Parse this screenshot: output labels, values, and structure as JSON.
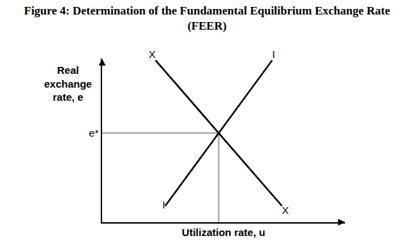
{
  "chart_data": {
    "type": "line",
    "title": "Figure 4: Determination of the Fundamental Equilibrium Exchange Rate (FEER)",
    "x_label": "Utilization rate, u",
    "y_label": "Real exchange rate, e",
    "xlim": [
      0,
      10
    ],
    "ylim": [
      0,
      10
    ],
    "xticks": [],
    "yticks": [
      {
        "value": 5.45,
        "label": "e*"
      }
    ],
    "tick_labels": "y",
    "grid": false,
    "series": [
      {
        "name": "X",
        "color": "#000000",
        "x": [
          2.2,
          7.4
        ],
        "values": [
          9.9,
          1.0
        ]
      },
      {
        "name": "I",
        "color": "#000000",
        "x": [
          2.6,
          7.0
        ],
        "values": [
          1.0,
          9.9
        ]
      }
    ],
    "equilibrium": {
      "x": 4.8,
      "y": 5.45,
      "color": "#b0b0b0"
    }
  }
}
